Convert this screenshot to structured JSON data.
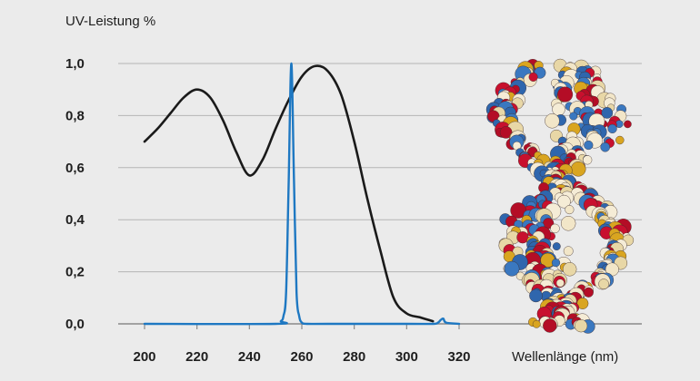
{
  "chart_data": {
    "type": "line",
    "ylabel": "UV-Leistung %",
    "xlabel": "Wellenlänge (nm)",
    "xlim": [
      200,
      320
    ],
    "ylim": [
      0,
      1
    ],
    "x_ticks": [
      "200",
      "220",
      "240",
      "260",
      "280",
      "300",
      "320"
    ],
    "y_ticks": [
      "0,0",
      "0,2",
      "0,4",
      "0,6",
      "0,8",
      "1,0"
    ],
    "grid": true,
    "series": [
      {
        "color": "#1a1a1a",
        "x": [
          200,
          205,
          210,
          215,
          220,
          225,
          230,
          235,
          240,
          245,
          250,
          255,
          260,
          265,
          270,
          275,
          280,
          285,
          290,
          295,
          300,
          305,
          310
        ],
        "y": [
          0.7,
          0.75,
          0.81,
          0.87,
          0.9,
          0.87,
          0.78,
          0.66,
          0.57,
          0.63,
          0.75,
          0.86,
          0.95,
          0.99,
          0.97,
          0.88,
          0.7,
          0.48,
          0.28,
          0.1,
          0.04,
          0.025,
          0.01
        ]
      },
      {
        "color": "#1e78c2",
        "x": [
          200,
          250,
          252,
          253,
          254,
          255,
          256,
          257,
          258,
          259,
          260,
          262,
          270,
          300,
          310,
          312,
          313,
          314,
          315,
          320
        ],
        "y": [
          0,
          0,
          0.01,
          0.03,
          0.12,
          0.55,
          1.0,
          0.55,
          0.12,
          0.03,
          0.005,
          0,
          0,
          0,
          0,
          0.005,
          0.015,
          0.02,
          0.005,
          0
        ]
      }
    ],
    "image": {
      "icon": "dna-double-helix-image"
    }
  }
}
